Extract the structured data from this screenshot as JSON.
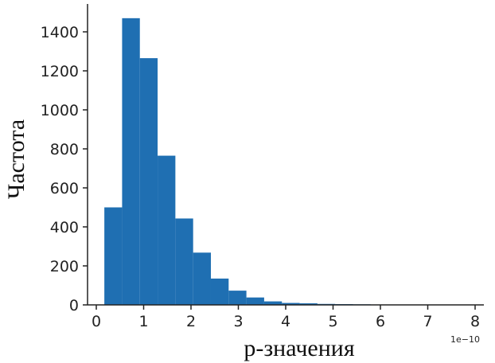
{
  "chart_data": {
    "type": "histogram",
    "xlabel": "p-значения",
    "ylabel": "Частота",
    "x_offset_label": "1e−10",
    "xlim": [
      -0.2,
      8.2
    ],
    "ylim": [
      0,
      1540
    ],
    "x_ticks": [
      0,
      1,
      2,
      3,
      4,
      5,
      6,
      7,
      8
    ],
    "x_tick_labels": [
      "0",
      "1",
      "2",
      "3",
      "4",
      "5",
      "6",
      "7",
      "8"
    ],
    "y_ticks": [
      0,
      200,
      400,
      600,
      800,
      1000,
      1200,
      1400
    ],
    "y_tick_labels": [
      "0",
      "200",
      "400",
      "600",
      "800",
      "1000",
      "1200",
      "1400"
    ],
    "bar_color": "#1f6fb2",
    "bin_start": 0.17,
    "bin_width": 0.375,
    "values": [
      500,
      1470,
      1265,
      765,
      443,
      268,
      135,
      73,
      38,
      18,
      10,
      8,
      5,
      4,
      3,
      2,
      2,
      1,
      2,
      1,
      1
    ]
  }
}
